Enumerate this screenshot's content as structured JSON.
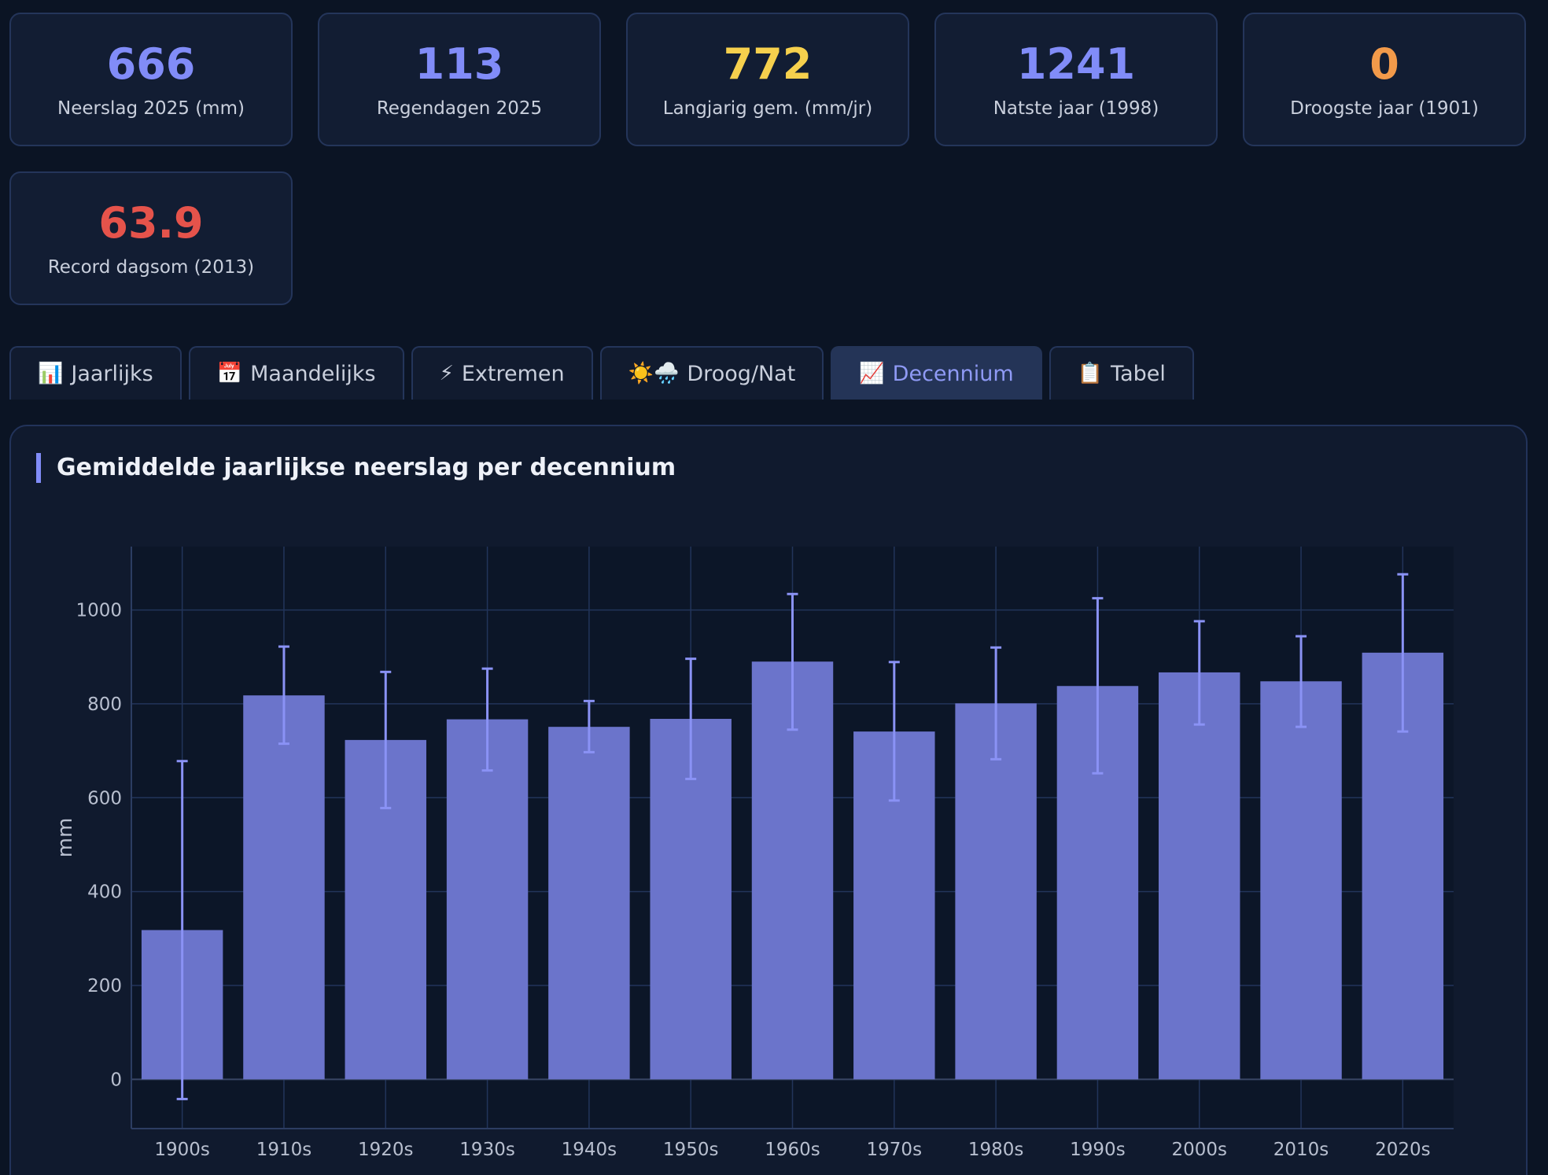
{
  "stats": [
    {
      "value": "666",
      "label": "Neerslag 2025 (mm)",
      "color": "#818cf8"
    },
    {
      "value": "113",
      "label": "Regendagen 2025",
      "color": "#818cf8"
    },
    {
      "value": "772",
      "label": "Langjarig gem. (mm/jr)",
      "color": "#f6d04d"
    },
    {
      "value": "1241",
      "label": "Natste jaar (1998)",
      "color": "#818cf8"
    },
    {
      "value": "0",
      "label": "Droogste jaar (1901)",
      "color": "#f29a4a"
    },
    {
      "value": "63.9",
      "label": "Record dagsom (2013)",
      "color": "#e5534b"
    }
  ],
  "tabs": [
    {
      "icon": "📊",
      "label": "Jaarlijks",
      "active": false
    },
    {
      "icon": "📅",
      "label": "Maandelijks",
      "active": false
    },
    {
      "icon": "⚡",
      "label": "Extremen",
      "active": false
    },
    {
      "icon": "☀️🌧️",
      "label": "Droog/Nat",
      "active": false
    },
    {
      "icon": "📈",
      "label": "Decennium",
      "active": true
    },
    {
      "icon": "📋",
      "label": "Tabel",
      "active": false
    }
  ],
  "panel": {
    "title": "Gemiddelde jaarlijkse neerslag per decennium"
  },
  "chart_data": {
    "type": "bar",
    "title": "Gemiddelde jaarlijkse neerslag per decennium",
    "xlabel": "",
    "ylabel": "mm",
    "ylim": [
      -105,
      1135
    ],
    "yticks": [
      0,
      200,
      400,
      600,
      800,
      1000
    ],
    "grid": true,
    "categories": [
      "1900s",
      "1910s",
      "1920s",
      "1930s",
      "1940s",
      "1950s",
      "1960s",
      "1970s",
      "1980s",
      "1990s",
      "2000s",
      "2010s",
      "2020s"
    ],
    "values": [
      318,
      818,
      723,
      767,
      751,
      768,
      890,
      741,
      801,
      838,
      867,
      848,
      909
    ],
    "error_low": [
      -42,
      715,
      578,
      658,
      697,
      640,
      745,
      594,
      682,
      652,
      756,
      751,
      741
    ],
    "error_high": [
      678,
      922,
      868,
      875,
      806,
      896,
      1034,
      889,
      920,
      1025,
      976,
      944,
      1076
    ],
    "colors": {
      "bar": "#6b74cb",
      "error": "#8a92f5",
      "grid": "#22345a",
      "plot_bg": "#0c1628",
      "tick_text": "#b8bfcf"
    }
  }
}
